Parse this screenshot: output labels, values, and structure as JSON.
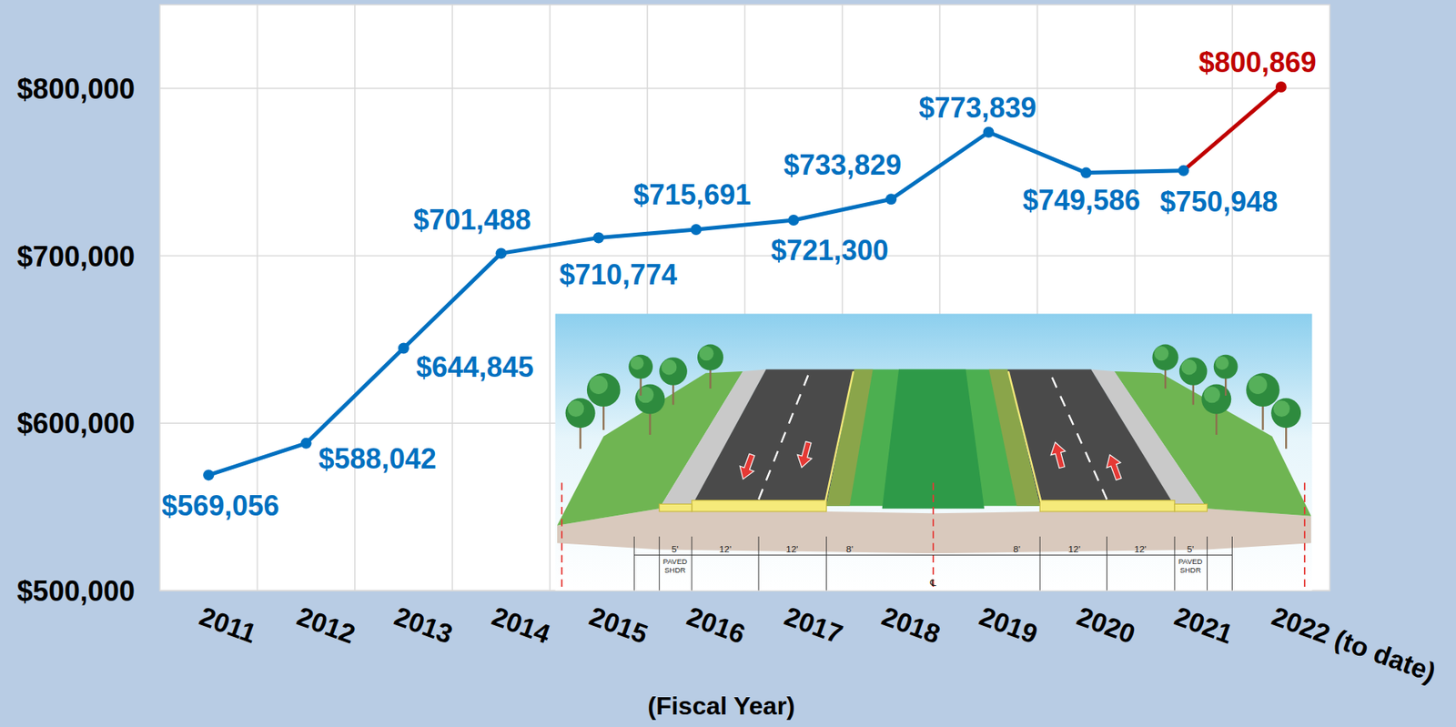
{
  "chart_data": {
    "type": "line",
    "categories": [
      "2011",
      "2012",
      "2013",
      "2014",
      "2015",
      "2016",
      "2017",
      "2018",
      "2019",
      "2020",
      "2021",
      "2022 (to date)"
    ],
    "values": [
      569056,
      588042,
      644845,
      701488,
      710774,
      715691,
      721300,
      733829,
      773839,
      749586,
      750948,
      800869
    ],
    "value_labels": [
      "$569,056",
      "$588,042",
      "$644,845",
      "$701,488",
      "$710,774",
      "$715,691",
      "$721,300",
      "$733,829",
      "$773,839",
      "$749,586",
      "$750,948",
      "$800,869"
    ],
    "colors": [
      "#0070c0",
      "#0070c0",
      "#0070c0",
      "#0070c0",
      "#0070c0",
      "#0070c0",
      "#0070c0",
      "#0070c0",
      "#0070c0",
      "#0070c0",
      "#0070c0",
      "#c00000"
    ],
    "marker": "circle",
    "data_labels": true,
    "grid": true,
    "x_label": "(Fiscal Year)",
    "ylim": [
      500000,
      850000
    ],
    "yticks": [
      {
        "value": 500000,
        "label": "$500,000"
      },
      {
        "value": 600000,
        "label": "$600,000"
      },
      {
        "value": 700000,
        "label": "$700,000"
      },
      {
        "value": 800000,
        "label": "$800,000"
      }
    ],
    "annotations": [
      "5'",
      "PAVED SHDR",
      "12'",
      "12'",
      "8'",
      "℄",
      "8'",
      "12'",
      "12'",
      "5'",
      "PAVED SHDR"
    ]
  }
}
